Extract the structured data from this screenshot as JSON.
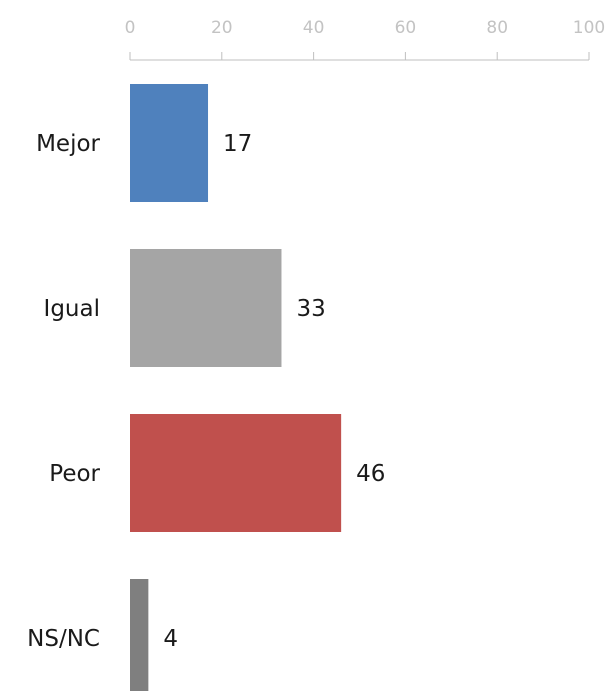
{
  "chart_data": {
    "type": "bar",
    "orientation": "horizontal",
    "axis_position": "top",
    "grid": false,
    "xlim": [
      0,
      100
    ],
    "ticks": [
      0,
      20,
      40,
      60,
      80,
      100
    ],
    "tick_labels": [
      "0",
      "20",
      "40",
      "60",
      "80",
      "100"
    ],
    "categories": [
      "Mejor",
      "Igual",
      "Peor",
      "NS/NC"
    ],
    "values": [
      17,
      33,
      46,
      4
    ],
    "value_labels": [
      "17",
      "33",
      "46",
      "4"
    ],
    "colors": [
      "#4f81bd",
      "#a5a5a5",
      "#c0504d",
      "#7f7f7f"
    ]
  }
}
